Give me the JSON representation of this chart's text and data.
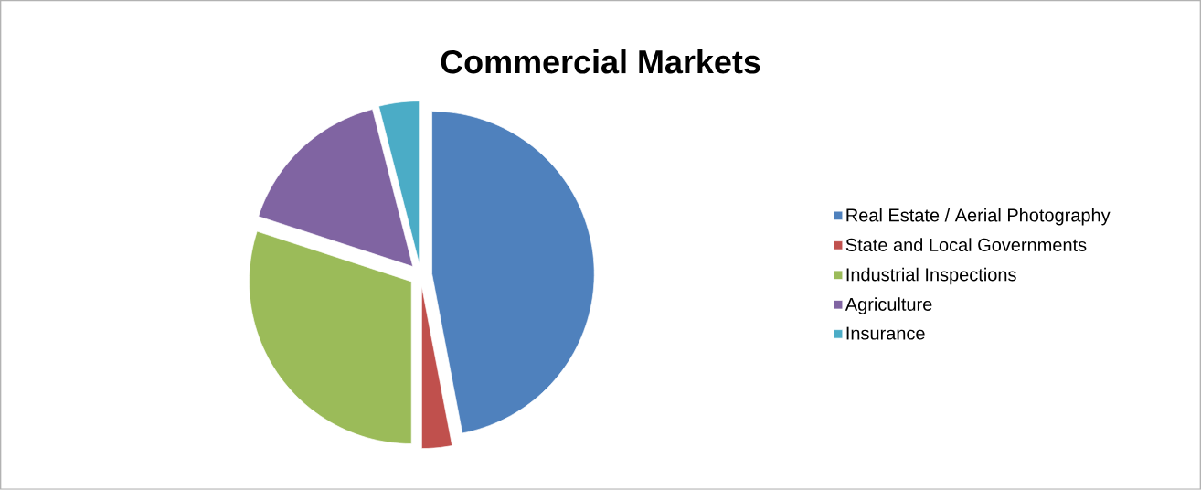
{
  "chart_data": {
    "type": "pie",
    "title": "Commercial Markets",
    "categories": [
      "Real Estate / Aerial Photography",
      "State and Local Governments",
      "Industrial Inspections",
      "Agriculture",
      "Insurance"
    ],
    "values": [
      47,
      3,
      30,
      16,
      4
    ],
    "colors": [
      "#4f81bd",
      "#c0504d",
      "#9bbb59",
      "#8064a2",
      "#4bacc6"
    ],
    "legend": "right"
  }
}
